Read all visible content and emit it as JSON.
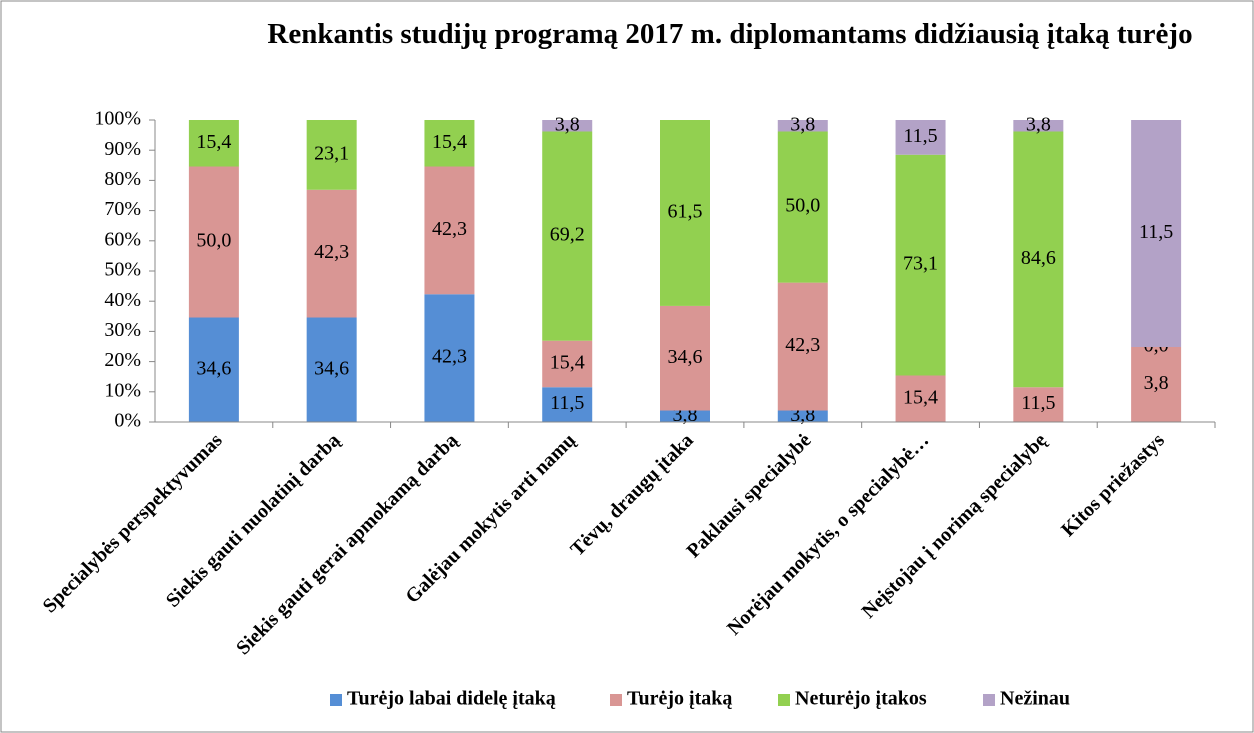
{
  "chart_data": {
    "type": "stacked_percent",
    "title": "Renkantis studijų programą 2017 m. diplomantams didžiausią įtaką turėjo",
    "categories": [
      "Specialybės perspektyvumas",
      "Siekis gauti nuolatinį darbą",
      "Siekis gauti gerai apmokamą darbą",
      "Galėjau mokytis arti namų",
      "Tėvų, draugų įtaka",
      "Paklausi specialybė",
      "Norėjau mokytis, o specialybė…",
      "Neįstojau į norimą specialybę",
      "Kitos priežastys"
    ],
    "series": [
      {
        "name": "Turėjo labai didelę įtaką",
        "color": "#558ed5",
        "values": [
          34.6,
          34.6,
          42.3,
          11.5,
          3.8,
          3.8,
          null,
          null,
          null
        ],
        "value_labels": [
          "34,6",
          "34,6",
          "42,3",
          "11,5",
          "3,8",
          "3,8",
          null,
          null,
          null
        ]
      },
      {
        "name": "Turėjo įtaką",
        "color": "#d99694",
        "values": [
          50.0,
          42.3,
          42.3,
          15.4,
          34.6,
          42.3,
          15.4,
          11.5,
          3.8
        ],
        "value_labels": [
          "50,0",
          "42,3",
          "42,3",
          "15,4",
          "34,6",
          "42,3",
          "15,4",
          "11,5",
          "3,8"
        ]
      },
      {
        "name": "Neturėjo įtakos",
        "color": "#92d050",
        "values": [
          15.4,
          23.1,
          15.4,
          69.2,
          61.5,
          50.0,
          73.1,
          84.6,
          0.0
        ],
        "value_labels": [
          "15,4",
          "23,1",
          "15,4",
          "69,2",
          "61,5",
          "50,0",
          "73,1",
          "84,6",
          "0,0"
        ]
      },
      {
        "name": "Nežinau",
        "color": "#b3a2c7",
        "values": [
          null,
          null,
          null,
          3.8,
          null,
          3.8,
          11.5,
          3.8,
          11.5
        ],
        "value_labels": [
          null,
          null,
          null,
          "3,8",
          null,
          "3,8",
          "11,5",
          "3,8",
          "11,5"
        ]
      }
    ],
    "ylim": [
      0,
      100
    ],
    "yticks": [
      {
        "value": 0,
        "label": "0%"
      },
      {
        "value": 10,
        "label": "10%"
      },
      {
        "value": 20,
        "label": "20%"
      },
      {
        "value": 30,
        "label": "30%"
      },
      {
        "value": 40,
        "label": "40%"
      },
      {
        "value": 50,
        "label": "50%"
      },
      {
        "value": 60,
        "label": "60%"
      },
      {
        "value": 70,
        "label": "70%"
      },
      {
        "value": 80,
        "label": "80%"
      },
      {
        "value": 90,
        "label": "90%"
      },
      {
        "value": 100,
        "label": "100%"
      }
    ],
    "legend": "bottom"
  }
}
